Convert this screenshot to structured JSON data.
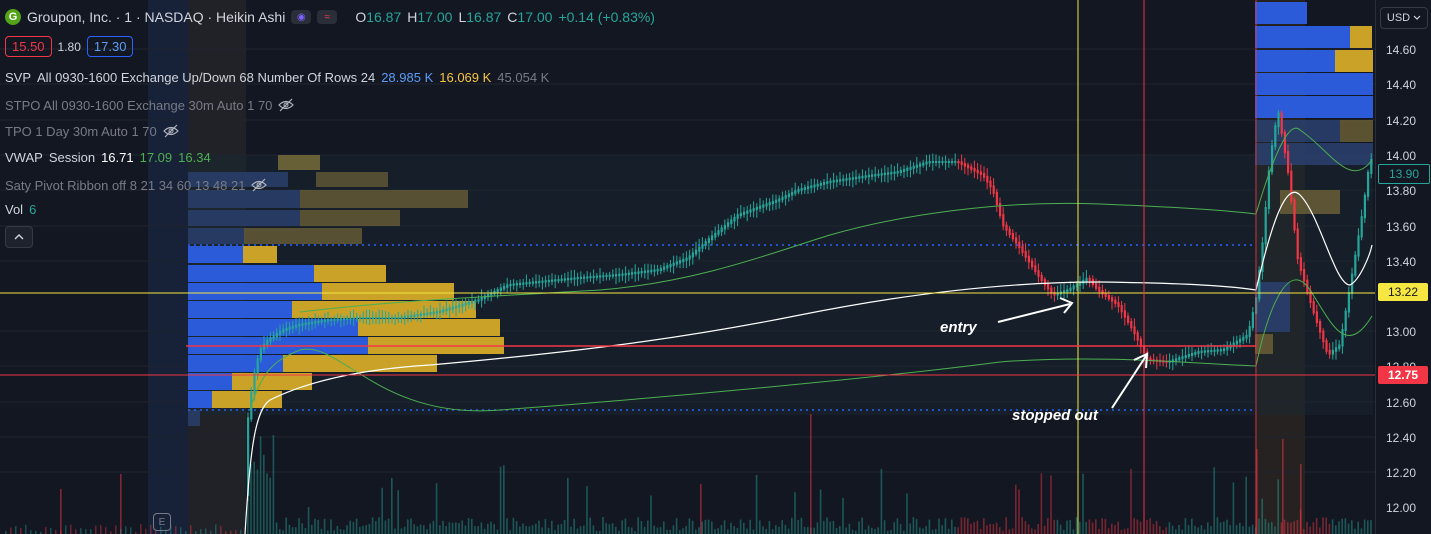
{
  "header": {
    "logo_letter": "G",
    "symbol_title": "Groupon, Inc. · 1 · NASDAQ · Heikin Ashi",
    "ohlc": {
      "o_label": "O",
      "o": "16.87",
      "h_label": "H",
      "h": "17.00",
      "l_label": "L",
      "l": "16.87",
      "c_label": "C",
      "c": "17.00",
      "change": "+0.14 (+0.83%)"
    }
  },
  "trade": {
    "sell_price": "15.50",
    "spread": "1.80",
    "buy_price": "17.30"
  },
  "indicators": {
    "svp": {
      "name": "SVP",
      "params": "All 0930-1600 Exchange Up/Down 68 Number Of Rows 24",
      "v1": "28.985 K",
      "v2": "16.069 K",
      "v3": "45.054 K"
    },
    "stpo": {
      "text": "STPO All 0930-1600 Exchange 30m Auto 1 70"
    },
    "tpo": {
      "text": "TPO 1 Day 30m Auto 1 70"
    },
    "vwap": {
      "name": "VWAP",
      "params": "Session",
      "v1": "16.71",
      "v2": "17.09",
      "v3": "16.34"
    },
    "saty": {
      "text": "Saty Pivot Ribbon off 8 21 34 60 13 48 21"
    },
    "vol": {
      "name": "Vol",
      "value": "6"
    }
  },
  "axis": {
    "currency": "USD",
    "ticks": [
      "14.60",
      "14.40",
      "14.20",
      "14.00",
      "13.80",
      "13.60",
      "13.40",
      "13.20",
      "13.00",
      "12.80",
      "12.60",
      "12.40",
      "12.20",
      "12.00"
    ],
    "last_price": "13.90",
    "crosshair_price": "13.22",
    "stop_price": "12.75"
  },
  "annotations": {
    "entry": "entry",
    "stopped_out": "stopped out",
    "earnings_marker": "E"
  },
  "colors": {
    "up": "#26a69a",
    "down": "#f23645",
    "crosshair": "#f5e642",
    "stop": "#f23645",
    "vwap": "#ffffff",
    "band": "#4caf50",
    "profile_up": "#2b5bd9",
    "profile_down": "#c9a227"
  }
}
